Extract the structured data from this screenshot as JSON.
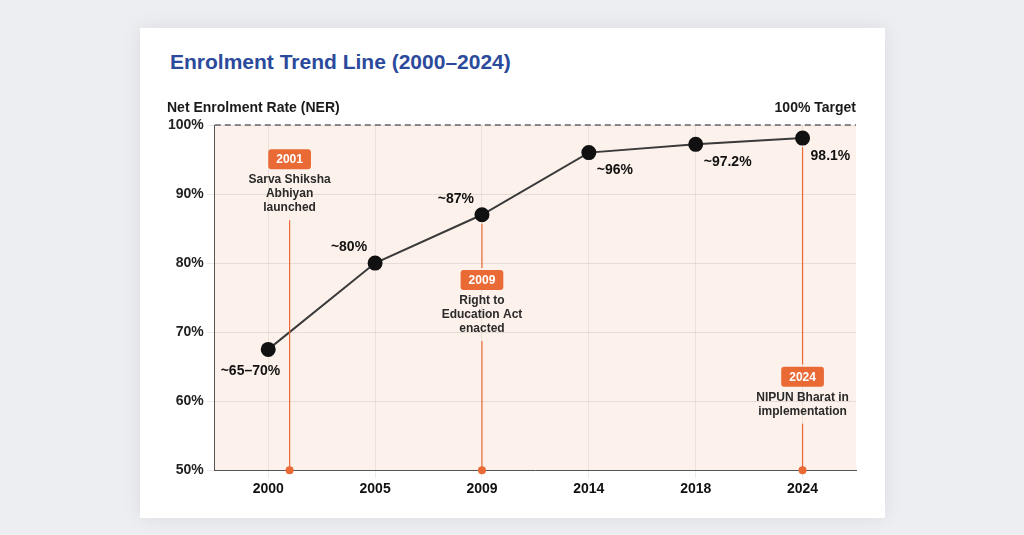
{
  "chart_data": {
    "type": "line",
    "title": "Enrolment Trend Line (2000–2024)",
    "y_label": "Net Enrolment Rate (NER)",
    "categories": [
      "2000",
      "2005",
      "2009",
      "2014",
      "2018",
      "2024"
    ],
    "values": [
      67.5,
      80,
      87,
      96,
      97.2,
      98.1
    ],
    "value_labels": [
      "~65–70%",
      "~80%",
      "~87%",
      "~96%",
      "~97.2%",
      "98.1%"
    ],
    "color": "#3a3a3a",
    "marker": "circle",
    "data_labels": true,
    "ylim": [
      50,
      100
    ],
    "yticks": [
      {
        "value": 50,
        "label": "50%"
      },
      {
        "value": 60,
        "label": "60%"
      },
      {
        "value": 70,
        "label": "70%"
      },
      {
        "value": 80,
        "label": "80%"
      },
      {
        "value": 90,
        "label": "90%"
      },
      {
        "value": 100,
        "label": "100%"
      }
    ],
    "grid": true,
    "target": {
      "value": 100,
      "label": "100% Target"
    },
    "annotations": [
      {
        "year": 2001,
        "label": "Sarva Shiksha Abhiyan launched"
      },
      {
        "year": 2009,
        "label": "Right to Education Act enacted"
      },
      {
        "year": 2024,
        "label": "NIPUN Bharat in implementation"
      }
    ]
  }
}
